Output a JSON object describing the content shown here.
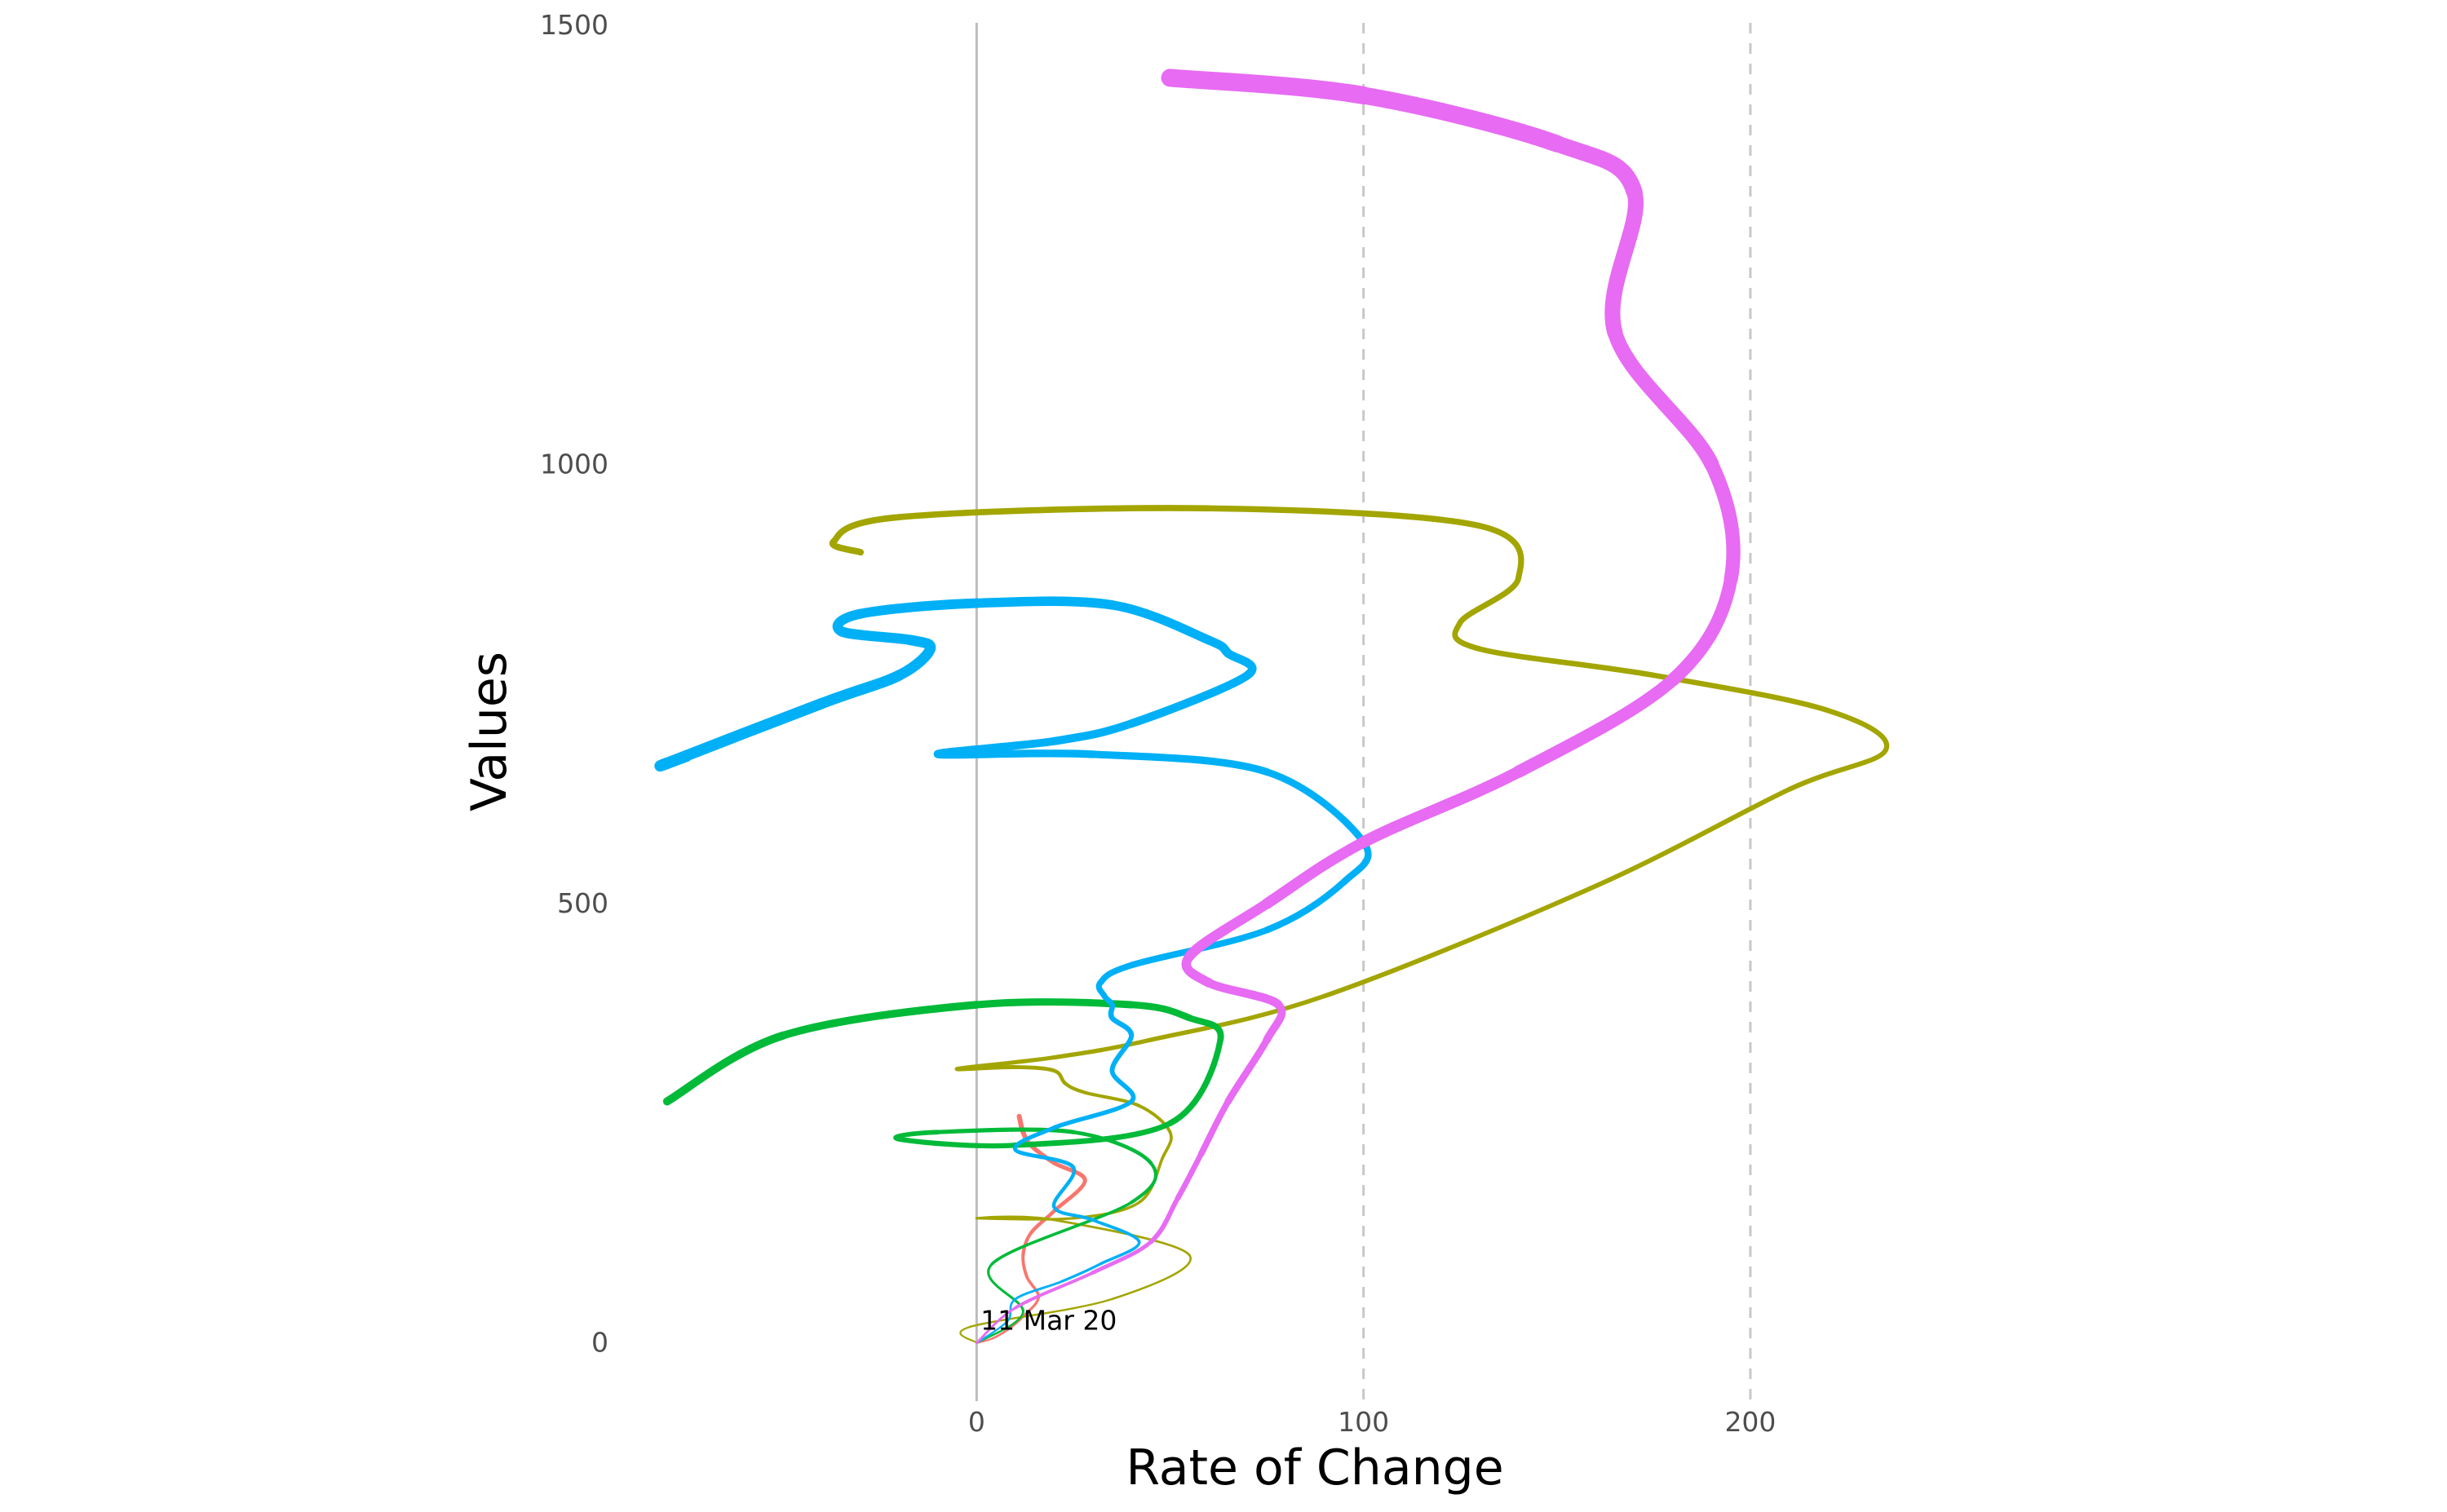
{
  "chart_data": {
    "type": "line",
    "title": "",
    "xlabel": "Rate of Change",
    "ylabel": "Values",
    "xlim": [
      -88,
      262
    ],
    "ylim": [
      -68,
      1510
    ],
    "x_ticks": [
      {
        "value": 0,
        "label": "0"
      },
      {
        "value": 100,
        "label": "100"
      },
      {
        "value": 200,
        "label": "200"
      }
    ],
    "y_ticks": [
      {
        "value": 0,
        "label": "0"
      },
      {
        "value": 500,
        "label": "500"
      },
      {
        "value": 1000,
        "label": "1000"
      },
      {
        "value": 1500,
        "label": "1500"
      }
    ],
    "solid_vline": 0,
    "dashed_vlines": [
      100,
      200
    ],
    "legend": "none",
    "grid": false,
    "annotations": [
      {
        "text": "11 Mar 20",
        "x": 1,
        "y": 15
      }
    ],
    "series": [
      {
        "color": "#F8766D",
        "stroke_scale": 2,
        "points": [
          [
            0,
            0
          ],
          [
            4,
            5
          ],
          [
            8,
            15
          ],
          [
            12,
            30
          ],
          [
            16,
            52
          ],
          [
            13,
            75
          ],
          [
            12,
            100
          ],
          [
            14,
            125
          ],
          [
            20,
            150
          ],
          [
            28,
            185
          ],
          [
            20,
            205
          ],
          [
            14,
            225
          ],
          [
            12,
            240
          ],
          [
            11,
            258
          ]
        ]
      },
      {
        "color": "#A3A500",
        "stroke_scale": 3,
        "points": [
          [
            0,
            0
          ],
          [
            -2,
            18
          ],
          [
            35,
            50
          ],
          [
            55,
            100
          ],
          [
            20,
            140
          ],
          [
            0,
            142
          ],
          [
            25,
            142
          ],
          [
            42,
            160
          ],
          [
            48,
            210
          ],
          [
            50,
            240
          ],
          [
            42,
            270
          ],
          [
            28,
            285
          ],
          [
            23,
            295
          ],
          [
            20,
            310
          ],
          [
            10,
            314
          ],
          [
            -5,
            312
          ],
          [
            20,
            325
          ],
          [
            45,
            345
          ],
          [
            90,
            395
          ],
          [
            160,
            520
          ],
          [
            210,
            630
          ],
          [
            235,
            675
          ],
          [
            220,
            720
          ],
          [
            175,
            760
          ],
          [
            130,
            790
          ],
          [
            125,
            820
          ],
          [
            140,
            870
          ],
          [
            130,
            930
          ],
          [
            60,
            950
          ],
          [
            -20,
            940
          ],
          [
            -37,
            912
          ],
          [
            -30,
            900
          ]
        ]
      },
      {
        "color": "#00BA38",
        "stroke_scale": 4,
        "points": [
          [
            0,
            0
          ],
          [
            12,
            35
          ],
          [
            4,
            90
          ],
          [
            40,
            160
          ],
          [
            45,
            205
          ],
          [
            25,
            240
          ],
          [
            -10,
            240
          ],
          [
            -20,
            232
          ],
          [
            10,
            225
          ],
          [
            50,
            250
          ],
          [
            63,
            345
          ],
          [
            55,
            370
          ],
          [
            40,
            385
          ],
          [
            0,
            385
          ],
          [
            -50,
            350
          ],
          [
            -80,
            275
          ]
        ]
      },
      {
        "color": "#00B0F6",
        "stroke_scale": 6,
        "points": [
          [
            0,
            0
          ],
          [
            8,
            25
          ],
          [
            10,
            50
          ],
          [
            22,
            70
          ],
          [
            32,
            90
          ],
          [
            42,
            115
          ],
          [
            30,
            140
          ],
          [
            20,
            155
          ],
          [
            25,
            200
          ],
          [
            10,
            220
          ],
          [
            20,
            245
          ],
          [
            40,
            275
          ],
          [
            35,
            310
          ],
          [
            40,
            350
          ],
          [
            35,
            370
          ],
          [
            35,
            385
          ],
          [
            33,
            395
          ],
          [
            32,
            410
          ],
          [
            40,
            430
          ],
          [
            75,
            470
          ],
          [
            95,
            525
          ],
          [
            100,
            570
          ],
          [
            75,
            650
          ],
          [
            30,
            670
          ],
          [
            -10,
            670
          ],
          [
            20,
            685
          ],
          [
            40,
            705
          ],
          [
            70,
            760
          ],
          [
            65,
            785
          ],
          [
            60,
            800
          ],
          [
            35,
            840
          ],
          [
            0,
            842
          ],
          [
            -30,
            830
          ],
          [
            -35,
            810
          ],
          [
            -17,
            800
          ],
          [
            -12,
            790
          ],
          [
            -20,
            760
          ],
          [
            -40,
            728
          ],
          [
            -80,
            660
          ],
          [
            -75,
            668
          ]
        ]
      },
      {
        "color": "#E76BF3",
        "stroke_scale": 10,
        "points": [
          [
            0,
            0
          ],
          [
            10,
            40
          ],
          [
            30,
            80
          ],
          [
            45,
            115
          ],
          [
            52,
            165
          ],
          [
            58,
            215
          ],
          [
            65,
            275
          ],
          [
            75,
            345
          ],
          [
            78,
            385
          ],
          [
            60,
            410
          ],
          [
            55,
            440
          ],
          [
            75,
            500
          ],
          [
            100,
            570
          ],
          [
            140,
            650
          ],
          [
            180,
            755
          ],
          [
            195,
            870
          ],
          [
            190,
            1000
          ],
          [
            165,
            1150
          ],
          [
            170,
            1310
          ],
          [
            150,
            1365
          ],
          [
            100,
            1420
          ],
          [
            50,
            1440
          ]
        ]
      }
    ]
  }
}
